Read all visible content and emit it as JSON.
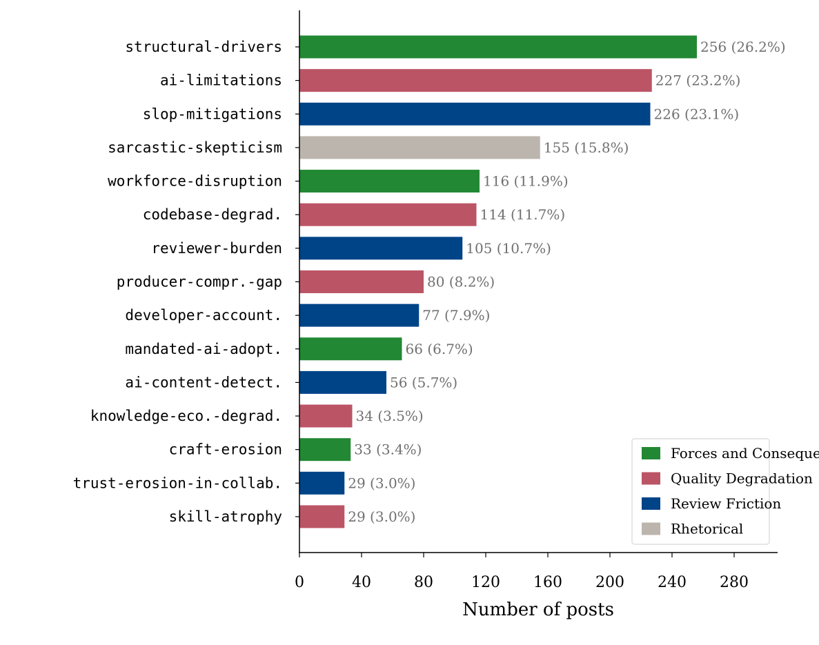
{
  "chart_data": {
    "type": "bar",
    "orientation": "horizontal",
    "title": "",
    "xlabel": "Number of posts",
    "ylabel": "",
    "xlim": [
      0,
      308
    ],
    "xticks": [
      0,
      40,
      80,
      120,
      160,
      200,
      240,
      280
    ],
    "grid": false,
    "legend_placement": "lower-right",
    "groups": [
      {
        "name": "Forces and Consequences",
        "color": "#228833"
      },
      {
        "name": "Quality Degradation",
        "color": "#BB5566"
      },
      {
        "name": "Review Friction",
        "color": "#004488"
      },
      {
        "name": "Rhetorical",
        "color": "#BBB5AD"
      }
    ],
    "bars": [
      {
        "category": "structural-drivers",
        "value": 256,
        "label": "256 (26.2%)",
        "group": 0
      },
      {
        "category": "ai-limitations",
        "value": 227,
        "label": "227 (23.2%)",
        "group": 1
      },
      {
        "category": "slop-mitigations",
        "value": 226,
        "label": "226 (23.1%)",
        "group": 2
      },
      {
        "category": "sarcastic-skepticism",
        "value": 155,
        "label": "155 (15.8%)",
        "group": 3
      },
      {
        "category": "workforce-disruption",
        "value": 116,
        "label": "116 (11.9%)",
        "group": 0
      },
      {
        "category": "codebase-degrad.",
        "value": 114,
        "label": "114 (11.7%)",
        "group": 1
      },
      {
        "category": "reviewer-burden",
        "value": 105,
        "label": "105 (10.7%)",
        "group": 2
      },
      {
        "category": "producer-compr.-gap",
        "value": 80,
        "label": "80 (8.2%)",
        "group": 1
      },
      {
        "category": "developer-account.",
        "value": 77,
        "label": "77 (7.9%)",
        "group": 2
      },
      {
        "category": "mandated-ai-adopt.",
        "value": 66,
        "label": "66 (6.7%)",
        "group": 0
      },
      {
        "category": "ai-content-detect.",
        "value": 56,
        "label": "56 (5.7%)",
        "group": 2
      },
      {
        "category": "knowledge-eco.-degrad.",
        "value": 34,
        "label": "34 (3.5%)",
        "group": 1
      },
      {
        "category": "craft-erosion",
        "value": 33,
        "label": "33 (3.4%)",
        "group": 0
      },
      {
        "category": "trust-erosion-in-collab.",
        "value": 29,
        "label": "29 (3.0%)",
        "group": 2
      },
      {
        "category": "skill-atrophy",
        "value": 29,
        "label": "29 (3.0%)",
        "group": 1
      }
    ]
  }
}
